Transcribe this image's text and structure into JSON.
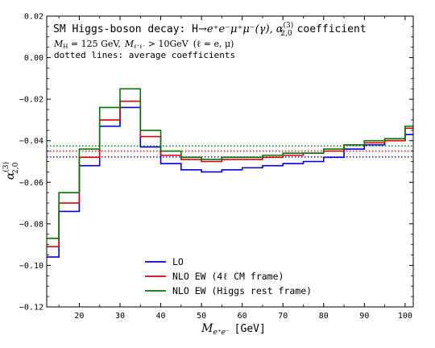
{
  "chart_data": {
    "type": "line",
    "title": "SM Higgs-boson decay: H→e⁺e⁻μ⁺μ⁻(γ), α₂,₀⁽³⁾ coefficient",
    "subtitle_line1": "M_H = 125 GeV, M_ℓ⁺ℓ⁻ > 10GeV (ℓ = e, μ)",
    "subtitle_line2": "dotted lines: average coefficients",
    "title_parts": {
      "main": "SM Higgs-boson decay: H",
      "arrow": "→",
      "final_state": "e⁺e⁻μ⁺μ⁻(γ),",
      "alpha_symbol": "α",
      "alpha_sup": "(3)",
      "alpha_sub": "2,0",
      "tail": "coefficient"
    },
    "subtitle_parts": {
      "mh_label": "M",
      "mh_sub": "H",
      "mh_value": " = 125 GeV,",
      "mll_label": "M",
      "mll_sub": "ℓ⁺ℓ⁻",
      "mll_value": " > 10GeV",
      "lepton_note": "(ℓ = e, μ)"
    },
    "xlabel": "M_e⁺e⁻ [GeV]",
    "xlabel_parts": {
      "symbol": "M",
      "sub": "e⁺e⁻",
      "unit": "[GeV]"
    },
    "ylabel": "α₂,₀⁽³⁾",
    "ylabel_parts": {
      "symbol": "α",
      "sup": "(3)",
      "sub": "2,0"
    },
    "xlim": [
      12,
      102
    ],
    "ylim": [
      -0.12,
      0.02
    ],
    "xticks": [
      20,
      30,
      40,
      50,
      60,
      70,
      80,
      90,
      100
    ],
    "yticks": [
      -0.12,
      -0.1,
      -0.08,
      -0.06,
      -0.04,
      -0.02,
      0.0,
      0.02
    ],
    "ytick_labels": [
      "−0.12",
      "−0.10",
      "−0.08",
      "−0.06",
      "−0.04",
      "−0.02",
      "0.00",
      "0.02"
    ],
    "bin_edges": [
      12,
      15,
      20,
      25,
      30,
      35,
      40,
      45,
      50,
      55,
      60,
      65,
      70,
      75,
      80,
      85,
      90,
      95,
      100,
      102
    ],
    "legend_position": "bottom-left",
    "series": [
      {
        "name": "LO",
        "color": "#0000dd",
        "values": [
          -0.096,
          -0.074,
          -0.052,
          -0.033,
          -0.024,
          -0.043,
          -0.051,
          -0.054,
          -0.055,
          -0.054,
          -0.053,
          -0.052,
          -0.051,
          -0.05,
          -0.048,
          -0.044,
          -0.042,
          -0.04,
          -0.037
        ],
        "average": -0.0478
      },
      {
        "name": "NLO EW (4ℓ CM frame)",
        "color": "#dd0000",
        "values": [
          -0.091,
          -0.07,
          -0.048,
          -0.03,
          -0.021,
          -0.038,
          -0.047,
          -0.049,
          -0.05,
          -0.049,
          -0.049,
          -0.048,
          -0.047,
          -0.046,
          -0.045,
          -0.042,
          -0.041,
          -0.04,
          -0.034
        ],
        "average": -0.045
      },
      {
        "name": "NLO EW (Higgs rest frame)",
        "color": "#007700",
        "values": [
          -0.087,
          -0.065,
          -0.044,
          -0.024,
          -0.015,
          -0.035,
          -0.045,
          -0.048,
          -0.049,
          -0.048,
          -0.048,
          -0.047,
          -0.046,
          -0.046,
          -0.044,
          -0.042,
          -0.04,
          -0.039,
          -0.033
        ],
        "average": -0.0425
      }
    ]
  }
}
